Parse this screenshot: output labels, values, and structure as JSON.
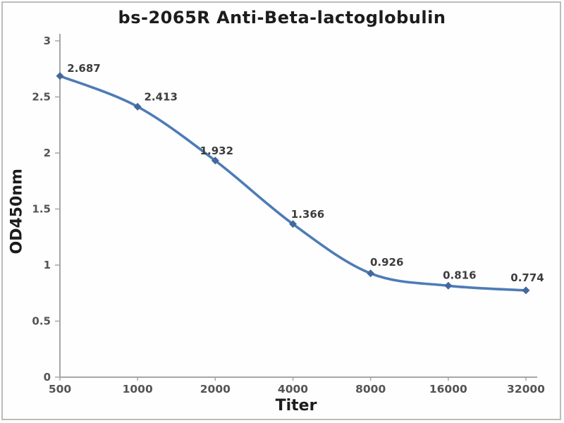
{
  "page": {
    "background_color": "#fefefe",
    "frame_border_color": "#bcbcbc"
  },
  "chart": {
    "title": "bs-2065R Anti-Beta-lactoglobulin",
    "x_axis_label": "Titer",
    "y_axis_label": "OD450nm"
  },
  "chart_data": {
    "type": "line",
    "title": "bs-2065R Anti-Beta-lactoglobulin",
    "xlabel": "Titer",
    "ylabel": "OD450nm",
    "categories": [
      "500",
      "1000",
      "2000",
      "4000",
      "8000",
      "16000",
      "32000"
    ],
    "series": [
      {
        "name": "OD450nm",
        "values": [
          2.687,
          2.413,
          1.932,
          1.366,
          0.926,
          0.816,
          0.774
        ]
      }
    ],
    "point_labels": [
      "2.687",
      "2.413",
      "1.932",
      "1.366",
      "0.926",
      "0.816",
      "0.774"
    ],
    "y_ticks": [
      0,
      0.5,
      1,
      1.5,
      2,
      2.5,
      3
    ],
    "ylim": [
      0,
      3
    ],
    "grid": false,
    "legend": false,
    "smooth_line": true,
    "marker_shape": "diamond",
    "line_color": "#4d7cb6",
    "marker_color": "#44689e",
    "axis_color": "#a6a6a6",
    "tick_label_color": "#545454",
    "data_label_color": "#3d3d3d"
  }
}
